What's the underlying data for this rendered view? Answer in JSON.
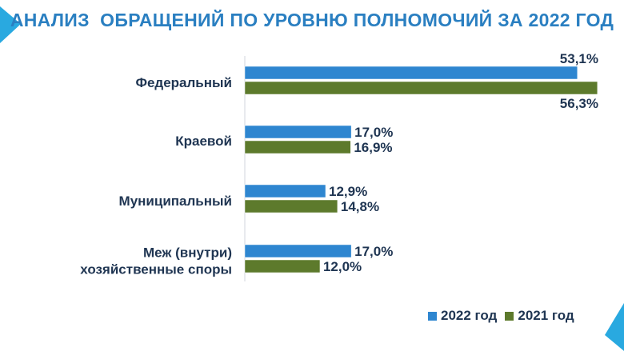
{
  "title": "АНАЛИЗ  ОБРАЩЕНИЙ ПО УРОВНЮ ПОЛНОМОЧИЙ ЗА 2022 ГОД",
  "colors": {
    "accent": "#2a7fc1",
    "series_2022": "#2e86d0",
    "series_2021": "#5d7a2c",
    "text": "#1f3552",
    "decor": "#29a9e0"
  },
  "chart_data": {
    "type": "bar",
    "orientation": "horizontal",
    "title": "АНАЛИЗ  ОБРАЩЕНИЙ ПО УРОВНЮ ПОЛНОМОЧИЙ ЗА 2022 ГОД",
    "categories": [
      [
        "Федеральный"
      ],
      [
        "Краевой"
      ],
      [
        "Муниципальный"
      ],
      [
        "Меж (внутри)",
        "хозяйственные споры"
      ]
    ],
    "series": [
      {
        "name": "2022 год",
        "values": [
          53.1,
          17.0,
          12.9,
          17.0
        ],
        "labels": [
          "53,1%",
          "17,0%",
          "12,9%",
          "17,0%"
        ],
        "color": "#2e86d0"
      },
      {
        "name": "2021 год",
        "values": [
          56.3,
          16.9,
          14.8,
          12.0
        ],
        "labels": [
          "56,3%",
          "16,9%",
          "14,8%",
          "12,0%"
        ],
        "color": "#5d7a2c"
      }
    ],
    "xlim": [
      0,
      60
    ],
    "grid": false,
    "legend_position": "bottom-right",
    "xlabel": "",
    "ylabel": ""
  },
  "legend": {
    "items": [
      "2022 год",
      "2021 год"
    ]
  }
}
